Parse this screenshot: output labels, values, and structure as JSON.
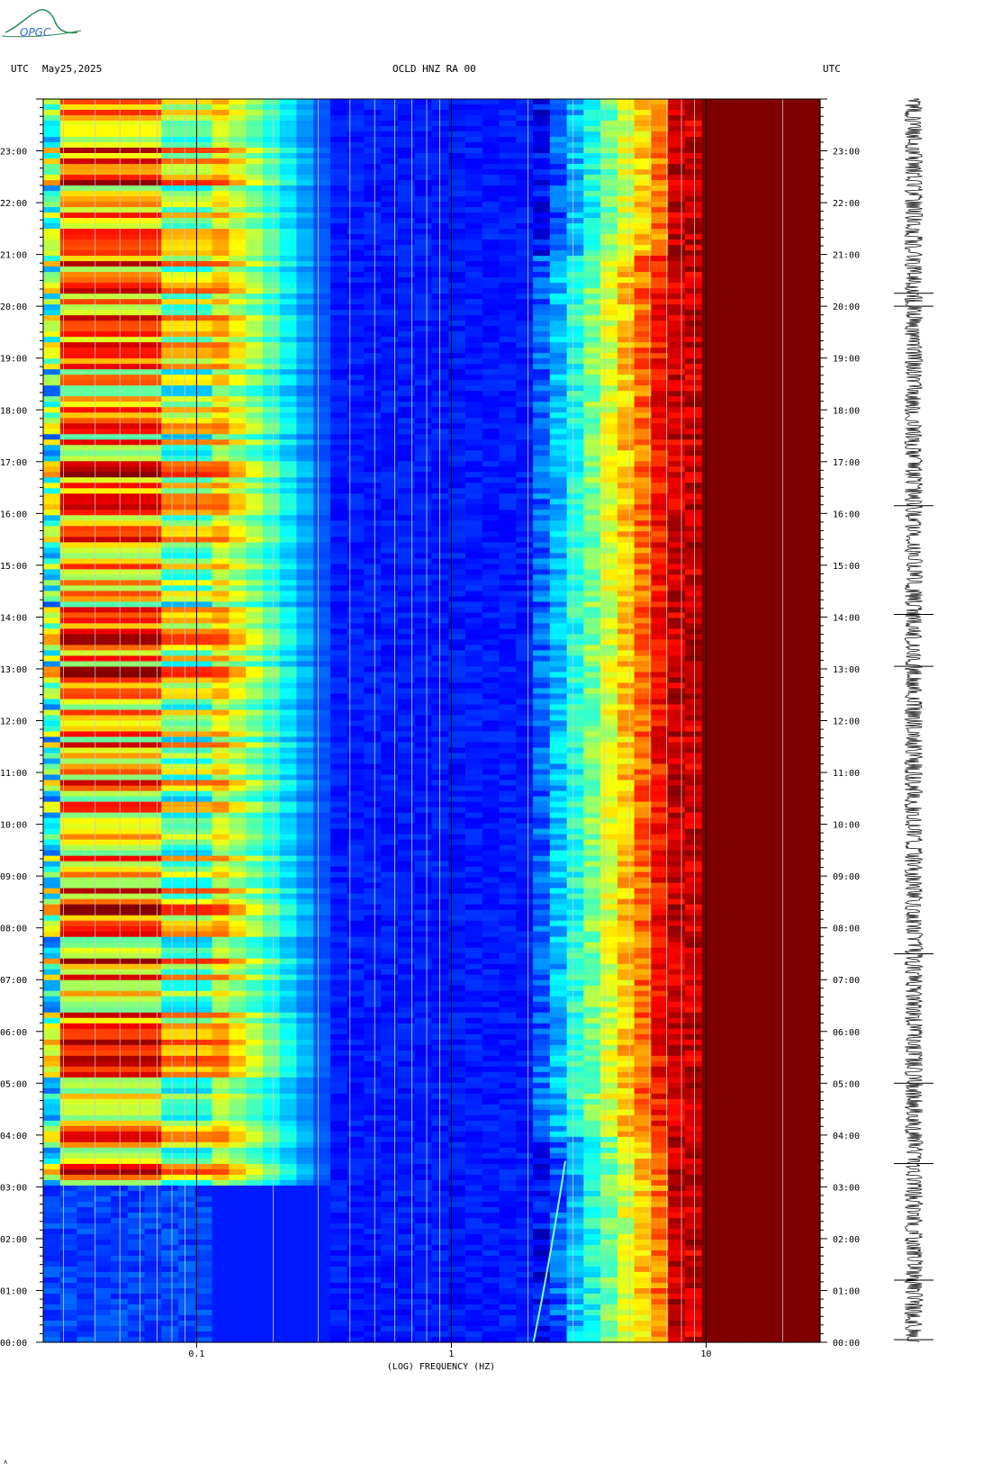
{
  "header": {
    "utc_left": "UTC",
    "date": "May25,2025",
    "station": "OCLD HNZ RA 00",
    "utc_right": "UTC"
  },
  "logo": {
    "text": "OPGC"
  },
  "footer_mark": "ʌ",
  "chart_data": {
    "type": "heatmap",
    "title": "OCLD HNZ RA 00",
    "date": "May25,2025",
    "xlabel": "(LOG) FREQUENCY (HZ)",
    "x_scale": "log",
    "xlim": [
      0.025,
      28
    ],
    "x_ticks": [
      {
        "value": 0.1,
        "label": "0.1"
      },
      {
        "value": 1,
        "label": "1"
      },
      {
        "value": 10,
        "label": "10"
      }
    ],
    "x_minor_gridlines": [
      0.03,
      0.04,
      0.05,
      0.06,
      0.07,
      0.08,
      0.09,
      0.2,
      0.3,
      0.4,
      0.5,
      0.6,
      0.7,
      0.8,
      0.9,
      2,
      3,
      4,
      5,
      6,
      7,
      8,
      9,
      20
    ],
    "ylabel": "UTC",
    "y_hours_bottom_to_top": [
      "00:00",
      "01:00",
      "02:00",
      "03:00",
      "04:00",
      "05:00",
      "06:00",
      "07:00",
      "08:00",
      "09:00",
      "10:00",
      "11:00",
      "12:00",
      "13:00",
      "14:00",
      "15:00",
      "16:00",
      "17:00",
      "18:00",
      "19:00",
      "20:00",
      "21:00",
      "22:00",
      "23:00"
    ],
    "ylim_hours": [
      0,
      24
    ],
    "colormap": [
      "#00007f",
      "#0000ff",
      "#0080ff",
      "#00ffff",
      "#80ff80",
      "#ffff00",
      "#ff8000",
      "#ff0000",
      "#800000"
    ],
    "features": [
      {
        "name": "low-frequency microseism band",
        "freq_range_hz": [
          0.03,
          0.12
        ],
        "time_range_hours": [
          3.0,
          24.0
        ],
        "level": "high"
      },
      {
        "name": "quiet low-frequency period",
        "freq_range_hz": [
          0.025,
          0.3
        ],
        "time_range_hours": [
          0.0,
          3.0
        ],
        "level": "low"
      },
      {
        "name": "high-frequency saturated band",
        "freq_range_hz": [
          8,
          28
        ],
        "time_range_hours": [
          0,
          24
        ],
        "level": "saturated"
      },
      {
        "name": "gliding tone",
        "freq_hz_start": 2.1,
        "freq_hz_end": 2.8,
        "time_range_hours": [
          0.0,
          3.5
        ]
      }
    ],
    "seismogram_marks_hours": [
      0.05,
      1.2,
      3.45,
      5.0,
      7.5,
      13.05,
      14.05,
      16.15,
      20.0,
      20.25
    ]
  }
}
